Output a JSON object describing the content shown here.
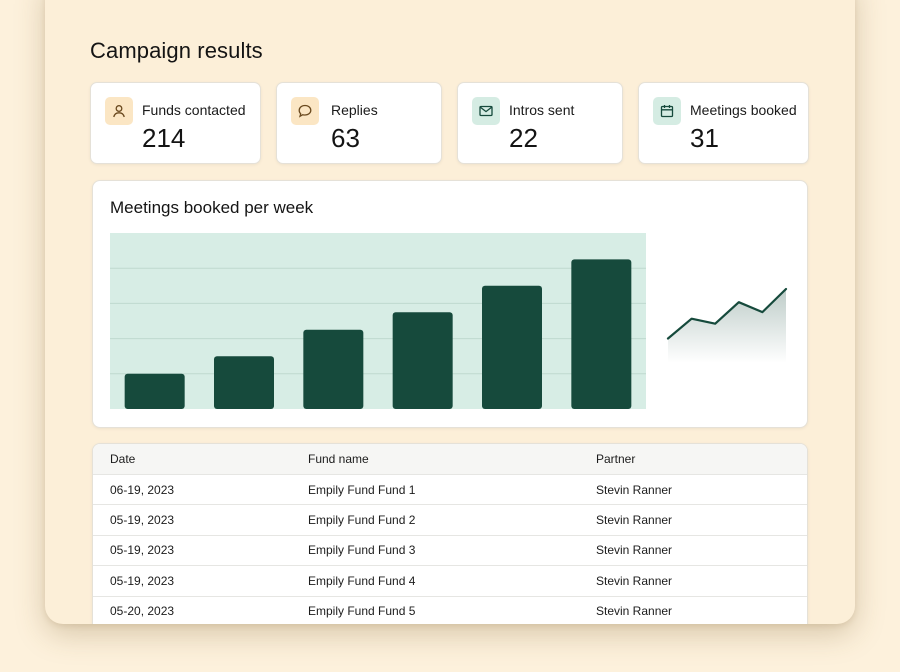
{
  "page": {
    "title": "Campaign results"
  },
  "stats": [
    {
      "label": "Funds contacted",
      "value": "214",
      "icon": "user-icon"
    },
    {
      "label": "Replies",
      "value": "63",
      "icon": "chat-bubble-icon"
    },
    {
      "label": "Intros sent",
      "value": "22",
      "icon": "mail-icon"
    },
    {
      "label": "Meetings booked",
      "value": "31",
      "icon": "calendar-icon"
    }
  ],
  "chart": {
    "title": "Meetings booked per week"
  },
  "chart_data": [
    {
      "type": "bar",
      "title": "Meetings booked per week",
      "categories": [
        "",
        "",
        "",
        "",
        "",
        ""
      ],
      "values": [
        2,
        3,
        4.5,
        5.5,
        7,
        8.5
      ],
      "ylim": [
        0,
        10
      ],
      "grid": true,
      "colors": {
        "bar": "#164a3c",
        "plot_bg": "#d7ede5",
        "grid": "#bfd9cf"
      }
    },
    {
      "type": "line",
      "title": "",
      "x": [
        1,
        2,
        3,
        4,
        5,
        6
      ],
      "values": [
        1,
        2.2,
        1.9,
        3.2,
        2.6,
        4
      ],
      "colors": {
        "line": "#164a3c"
      }
    }
  ],
  "table": {
    "headers": [
      "Date",
      "Fund name",
      "Partner"
    ],
    "rows": [
      [
        "06-19, 2023",
        "Empily Fund Fund 1",
        "Stevin Ranner"
      ],
      [
        "05-19, 2023",
        "Empily Fund Fund 2",
        "Stevin Ranner"
      ],
      [
        "05-19, 2023",
        "Empily Fund Fund 3",
        "Stevin Ranner"
      ],
      [
        "05-19, 2023",
        "Empily Fund Fund 4",
        "Stevin Ranner"
      ],
      [
        "05-20, 2023",
        "Empily Fund Fund 5",
        "Stevin Ranner"
      ]
    ]
  },
  "colors": {
    "background": "#fdf1dc",
    "accent_dark_green": "#164a3c",
    "icon_warm": "#fbe6c4",
    "icon_cool": "#d5ece3"
  }
}
